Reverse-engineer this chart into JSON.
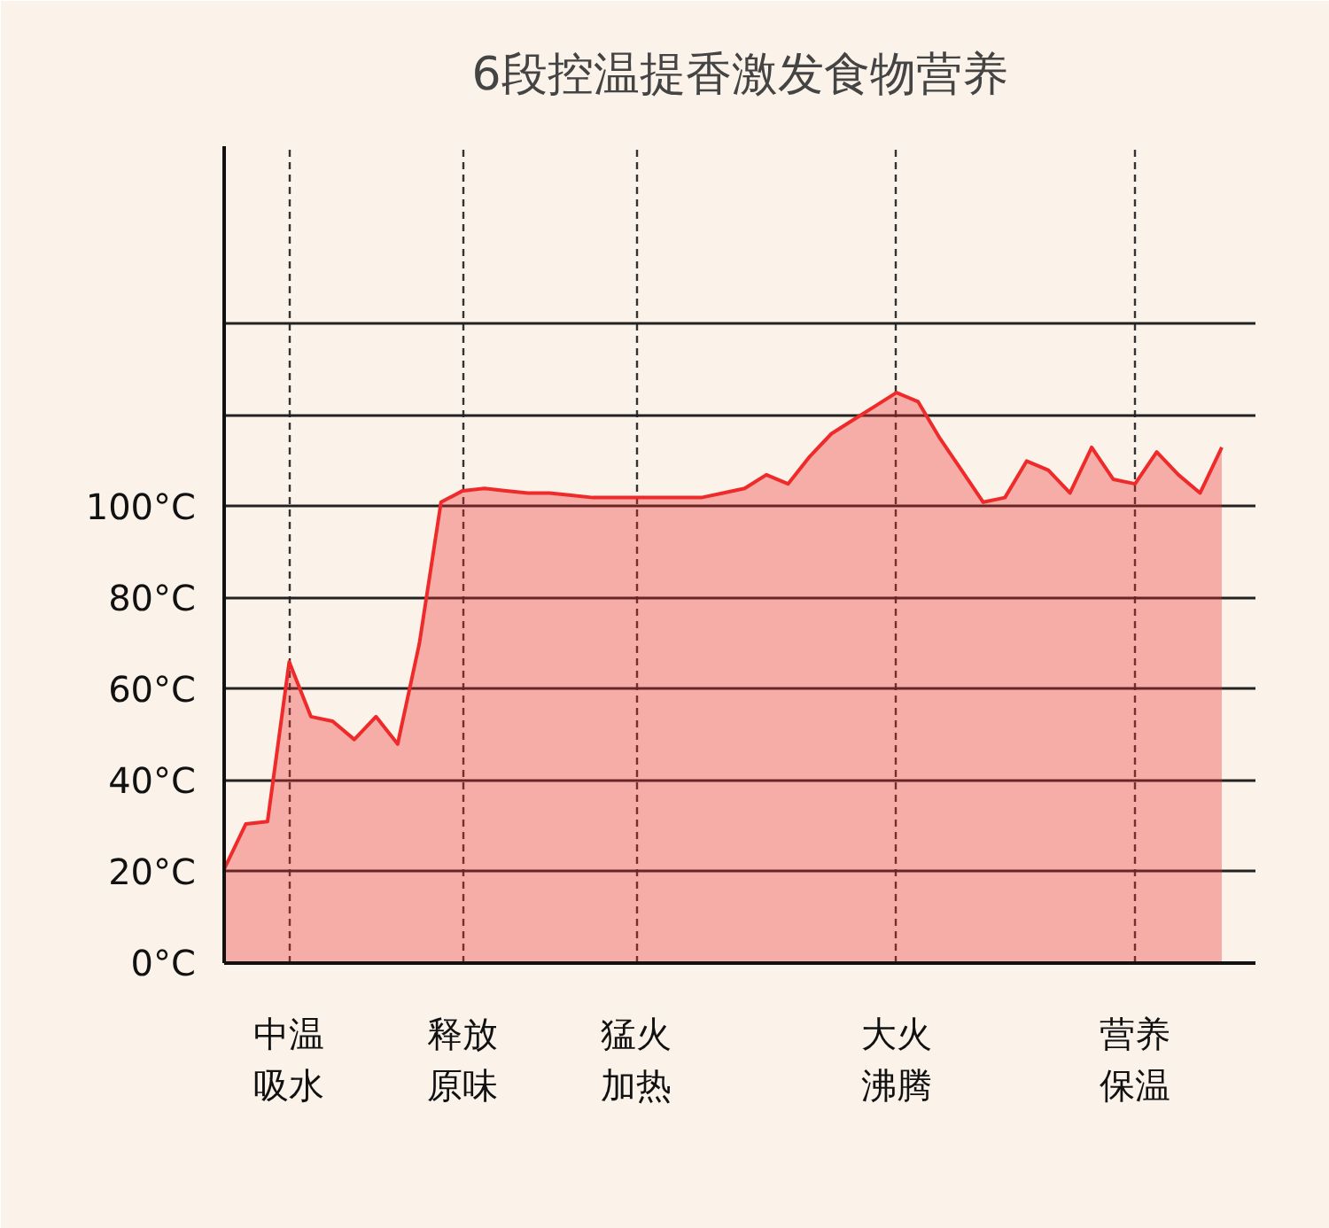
{
  "chart_data": {
    "type": "area",
    "title": "6段控温提香激发食物营养",
    "categories": [
      null,
      null,
      null,
      "中温吸水",
      null,
      null,
      null,
      null,
      null,
      null,
      null,
      "释放原味",
      null,
      null,
      null,
      null,
      null,
      null,
      null,
      "猛火加热",
      null,
      null,
      null,
      null,
      null,
      null,
      null,
      null,
      null,
      null,
      null,
      "大火沸腾",
      null,
      null,
      null,
      null,
      null,
      null,
      null,
      null,
      null,
      null,
      "营养保温",
      null,
      null,
      null,
      null
    ],
    "series": [
      {
        "color": "#ee2a2a",
        "values": [
          20.6,
          30.5,
          31,
          66,
          54,
          53,
          49,
          54,
          48,
          70,
          101,
          103.5,
          104,
          103.5,
          103,
          103,
          102.5,
          102,
          102,
          102,
          102,
          102,
          102,
          103,
          104,
          107,
          105,
          111,
          116,
          119,
          122,
          125,
          123,
          115,
          108,
          101,
          102,
          110,
          108,
          103,
          113,
          106,
          105,
          112,
          107,
          103,
          113
        ]
      }
    ],
    "ylim": [
      0,
      179
    ],
    "yticks": [
      {
        "value": 0,
        "label": "0°C"
      },
      {
        "value": 20,
        "label": "20°C"
      },
      {
        "value": 40,
        "label": "40°C"
      },
      {
        "value": 60,
        "label": "60°C"
      },
      {
        "value": 80,
        "label": "80°C"
      },
      {
        "value": 100,
        "label": "100°C"
      },
      {
        "value": 120,
        "label": null
      },
      {
        "value": 140,
        "label": null
      }
    ],
    "grid": true
  }
}
